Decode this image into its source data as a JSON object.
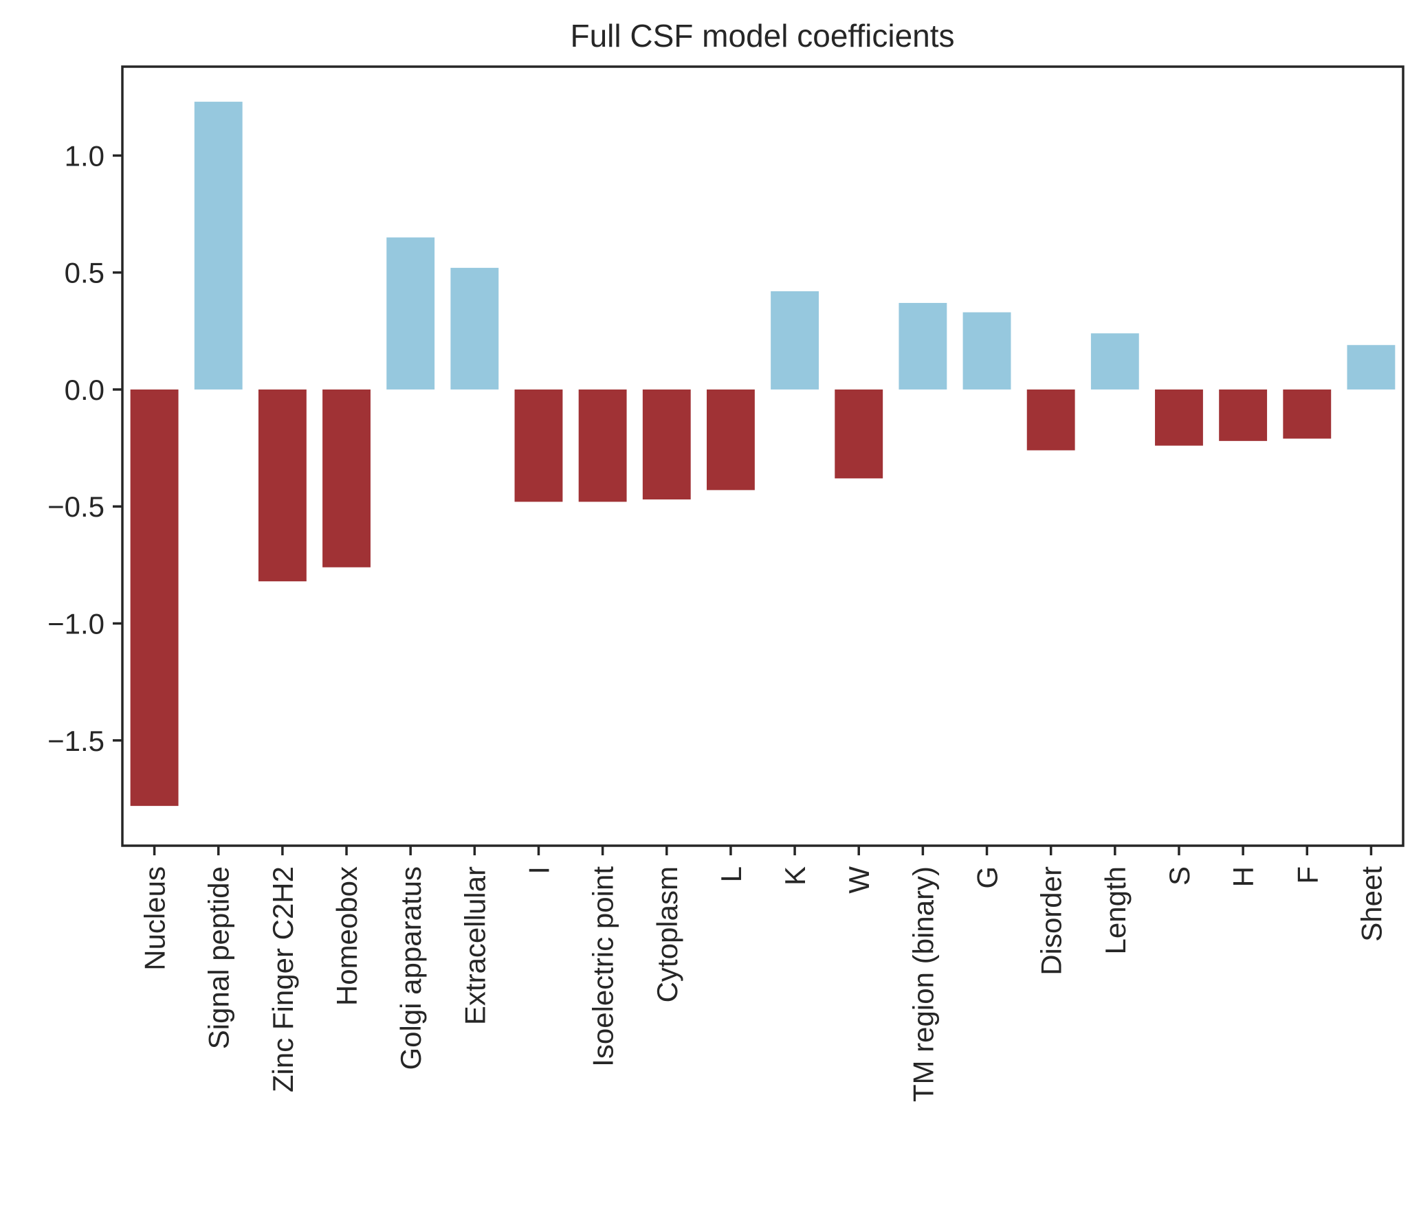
{
  "chart_data": {
    "type": "bar",
    "title": "Full CSF model coefficients",
    "xlabel": "",
    "ylabel": "",
    "ylim": [
      -1.95,
      1.38
    ],
    "yticks": [
      1.0,
      0.5,
      0.0,
      -0.5,
      -1.0,
      -1.5
    ],
    "ytick_labels": [
      "1.0",
      "0.5",
      "0.0",
      "−0.5",
      "−1.0",
      "−1.5"
    ],
    "grid": false,
    "legend": "none",
    "colors": {
      "positive": "#96c8de",
      "negative": "#a03235",
      "axes": "#262626",
      "text": "#262626"
    },
    "categories": [
      "Nucleus",
      "Signal peptide",
      "Zinc Finger C2H2",
      "Homeobox",
      "Golgi apparatus",
      "Extracellular",
      "I",
      "Isoelectric point",
      "Cytoplasm",
      "L",
      "K",
      "W",
      "TM region (binary)",
      "G",
      "Disorder",
      "Length",
      "S",
      "H",
      "F",
      "Sheet"
    ],
    "values": [
      -1.78,
      1.23,
      -0.82,
      -0.76,
      0.65,
      0.52,
      -0.48,
      -0.48,
      -0.47,
      -0.43,
      0.42,
      -0.38,
      0.37,
      0.33,
      -0.26,
      0.24,
      -0.24,
      -0.22,
      -0.21,
      0.19
    ]
  }
}
